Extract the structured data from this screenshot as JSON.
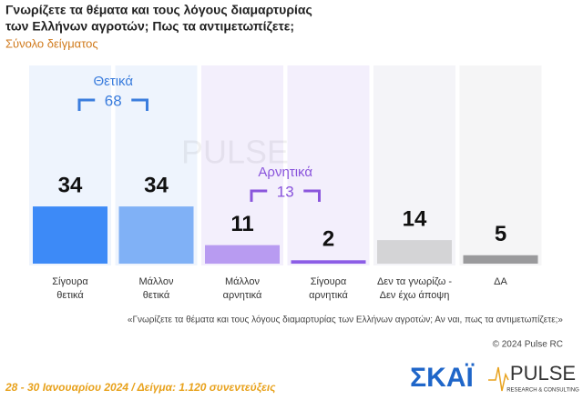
{
  "chart_data": {
    "type": "bar",
    "title": [
      "Γνωρίζετε τα θέματα και τους λόγους διαμαρτυρίας",
      "των Ελλήνων αγροτών; Πως τα αντιμετωπίζετε;"
    ],
    "subtitle": "Σύνολο δείγματος",
    "categories": [
      [
        "Σίγουρα",
        "θετικά"
      ],
      [
        "Μάλλον",
        "θετικά"
      ],
      [
        "Μάλλον",
        "αρνητικά"
      ],
      [
        "Σίγουρα",
        "αρνητικά"
      ],
      [
        "Δεν τα γνωρίζω -",
        "Δεν έχω άποψη"
      ],
      [
        "ΔΑ"
      ]
    ],
    "values": [
      34,
      34,
      11,
      2,
      14,
      5
    ],
    "colors": [
      "#3d8af7",
      "#80b1f6",
      "#b89bf1",
      "#8c5de6",
      "#d4d4d6",
      "#9a9a9c"
    ],
    "column_colors": [
      "#eef4fd",
      "#eef4fd",
      "#f3effc",
      "#f3effc",
      "#f4f4f8",
      "#f5f5f6"
    ],
    "groups": [
      {
        "label": "Θετικά",
        "value": 68,
        "color": "#3b7ddd",
        "from": 0,
        "to": 1
      },
      {
        "label": "Αρνητικά",
        "value": 13,
        "color": "#8a55dc",
        "from": 2,
        "to": 3
      }
    ],
    "footnote": "«Γνωρίζετε τα θέματα και τους λόγους διαμαρτυρίας των Ελλήνων αγροτών; Αν ναι, πως τα αντιμετωπίζετε;»",
    "copyright": "© 2024 Pulse RC",
    "footer": "28 - 30 Ιανουαρίου 2024  /  Δείγμα:  1.120 συνεντεύξεις",
    "logos": {
      "skai": "ΣΚΑΪ",
      "pulse": "PULSE",
      "pulse_sub": "RESEARCH & CONSULTING"
    }
  }
}
